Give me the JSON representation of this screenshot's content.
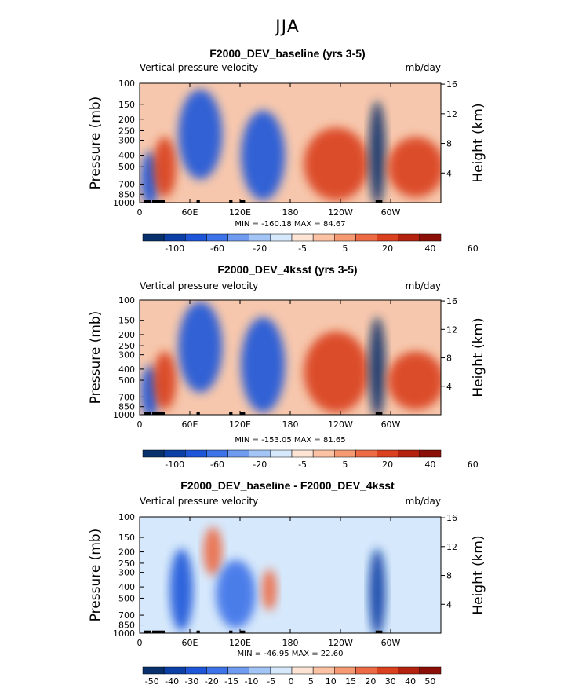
{
  "figure_title": "JJA",
  "colors": {
    "levels_main": [
      "#08306b",
      "#0b3fa6",
      "#1e56d9",
      "#3d72e8",
      "#6f9cf0",
      "#a3c5f6",
      "#d6e8fb",
      "#fde4d4",
      "#fbc3a4",
      "#f59a72",
      "#ec6b45",
      "#d9411f",
      "#b2220f",
      "#8b0f06"
    ],
    "levels_diff": [
      "#08306b",
      "#0b3fa6",
      "#1e56d9",
      "#3d72e8",
      "#6f9cf0",
      "#a3c5f6",
      "#d6e8fb",
      "#fde4d4",
      "#fbc3a4",
      "#f59a72",
      "#ec6b45",
      "#d9411f",
      "#b2220f",
      "#8b0f06"
    ],
    "background_field": "#f6c7ad",
    "topography": "#000000"
  },
  "chart_data": [
    {
      "type": "heatmap",
      "title": "F2000_DEV_baseline (yrs 3-5)",
      "subtitle_left": "Vertical pressure velocity",
      "subtitle_right": "mb/day",
      "ylabel": "Pressure (mb)",
      "ylabel_right": "Height (km)",
      "y_ticks": [
        "100",
        "150",
        "200",
        "250",
        "300",
        "400",
        "500",
        "700",
        "850",
        "1000"
      ],
      "y_tick_values": [
        100,
        150,
        200,
        250,
        300,
        400,
        500,
        700,
        850,
        1000
      ],
      "y_right_ticks": [
        "16",
        "12",
        "8",
        "4"
      ],
      "y_right_tick_values": [
        16,
        12,
        8,
        4
      ],
      "x_ticks": [
        "0",
        "60E",
        "120E",
        "180",
        "120W",
        "60W"
      ],
      "x_tick_values": [
        0,
        60,
        120,
        180,
        240,
        300
      ],
      "xlim": [
        0,
        360
      ],
      "ylim": [
        1000,
        100
      ],
      "stats_text": "MIN = -160.18   MAX =  84.67",
      "min": -160.18,
      "max": 84.67,
      "colorbar_labels": [
        "-100",
        "-60",
        "-20",
        "-5",
        "5",
        "20",
        "40",
        "60"
      ],
      "colorbar_levels": [
        -120,
        -100,
        -80,
        -60,
        -40,
        -20,
        -10,
        -5,
        0,
        5,
        10,
        20,
        30,
        40,
        50,
        60,
        70
      ],
      "features": [
        {
          "lon_range": [
            5,
            20
          ],
          "p_top": 400,
          "p_bottom": 1000,
          "value": -60
        },
        {
          "lon_range": [
            20,
            40
          ],
          "p_top": 300,
          "p_bottom": 850,
          "value": 30
        },
        {
          "lon_range": [
            50,
            95
          ],
          "p_top": 120,
          "p_bottom": 600,
          "value": -60
        },
        {
          "lon_range": [
            125,
            170
          ],
          "p_top": 180,
          "p_bottom": 900,
          "value": -60
        },
        {
          "lon_range": [
            200,
            270
          ],
          "p_top": 250,
          "p_bottom": 900,
          "value": 30
        },
        {
          "lon_range": [
            278,
            290
          ],
          "p_top": 150,
          "p_bottom": 1000,
          "value": -100
        },
        {
          "lon_range": [
            300,
            360
          ],
          "p_top": 300,
          "p_bottom": 850,
          "value": 30
        }
      ]
    },
    {
      "type": "heatmap",
      "title": "F2000_DEV_4ksst (yrs 3-5)",
      "subtitle_left": "Vertical pressure velocity",
      "subtitle_right": "mb/day",
      "ylabel": "Pressure (mb)",
      "ylabel_right": "Height (km)",
      "y_ticks": [
        "100",
        "150",
        "200",
        "250",
        "300",
        "400",
        "500",
        "700",
        "850",
        "1000"
      ],
      "y_tick_values": [
        100,
        150,
        200,
        250,
        300,
        400,
        500,
        700,
        850,
        1000
      ],
      "y_right_ticks": [
        "16",
        "12",
        "8",
        "4"
      ],
      "y_right_tick_values": [
        16,
        12,
        8,
        4
      ],
      "x_ticks": [
        "0",
        "60E",
        "120E",
        "180",
        "120W",
        "60W"
      ],
      "x_tick_values": [
        0,
        60,
        120,
        180,
        240,
        300
      ],
      "xlim": [
        0,
        360
      ],
      "ylim": [
        1000,
        100
      ],
      "stats_text": "MIN = -153.05   MAX =  81.65",
      "min": -153.05,
      "max": 81.65,
      "colorbar_labels": [
        "-100",
        "-60",
        "-20",
        "-5",
        "5",
        "20",
        "40",
        "60"
      ],
      "colorbar_levels": [
        -120,
        -100,
        -80,
        -60,
        -40,
        -20,
        -10,
        -5,
        0,
        5,
        10,
        20,
        30,
        40,
        50,
        60,
        70
      ],
      "features": [
        {
          "lon_range": [
            5,
            20
          ],
          "p_top": 400,
          "p_bottom": 1000,
          "value": -60
        },
        {
          "lon_range": [
            20,
            40
          ],
          "p_top": 300,
          "p_bottom": 850,
          "value": 30
        },
        {
          "lon_range": [
            50,
            95
          ],
          "p_top": 110,
          "p_bottom": 600,
          "value": -60
        },
        {
          "lon_range": [
            125,
            170
          ],
          "p_top": 150,
          "p_bottom": 900,
          "value": -60
        },
        {
          "lon_range": [
            200,
            270
          ],
          "p_top": 200,
          "p_bottom": 900,
          "value": 30
        },
        {
          "lon_range": [
            278,
            290
          ],
          "p_top": 150,
          "p_bottom": 1000,
          "value": -100
        },
        {
          "lon_range": [
            300,
            360
          ],
          "p_top": 300,
          "p_bottom": 850,
          "value": 30
        }
      ]
    },
    {
      "type": "heatmap",
      "title": "F2000_DEV_baseline - F2000_DEV_4ksst",
      "subtitle_left": "Vertical pressure velocity",
      "subtitle_right": "mb/day",
      "ylabel": "Pressure (mb)",
      "ylabel_right": "Height (km)",
      "y_ticks": [
        "100",
        "150",
        "200",
        "250",
        "300",
        "400",
        "500",
        "700",
        "850",
        "1000"
      ],
      "y_tick_values": [
        100,
        150,
        200,
        250,
        300,
        400,
        500,
        700,
        850,
        1000
      ],
      "y_right_ticks": [
        "16",
        "12",
        "8",
        "4"
      ],
      "y_right_tick_values": [
        16,
        12,
        8,
        4
      ],
      "x_ticks": [
        "0",
        "60E",
        "120E",
        "180",
        "120W",
        "60W"
      ],
      "x_tick_values": [
        0,
        60,
        120,
        180,
        240,
        300
      ],
      "xlim": [
        0,
        360
      ],
      "ylim": [
        1000,
        100
      ],
      "stats_text": "MIN = -46.95   MAX =  22.60",
      "min": -46.95,
      "max": 22.6,
      "colorbar_labels": [
        "-50",
        "-40",
        "-30",
        "-20",
        "-15",
        "-10",
        "-5",
        "0",
        "5",
        "10",
        "15",
        "20",
        "30",
        "40",
        "50"
      ],
      "colorbar_levels": [
        -55,
        -50,
        -40,
        -30,
        -20,
        -15,
        -10,
        -5,
        0,
        5,
        10,
        15,
        20,
        30,
        40,
        50,
        55
      ],
      "features": [
        {
          "lon_range": [
            40,
            60
          ],
          "p_top": 200,
          "p_bottom": 900,
          "value": -25
        },
        {
          "lon_range": [
            80,
            95
          ],
          "p_top": 130,
          "p_bottom": 300,
          "value": 15
        },
        {
          "lon_range": [
            95,
            135
          ],
          "p_top": 250,
          "p_bottom": 850,
          "value": -20
        },
        {
          "lon_range": [
            150,
            160
          ],
          "p_top": 300,
          "p_bottom": 600,
          "value": 15
        },
        {
          "lon_range": [
            278,
            290
          ],
          "p_top": 200,
          "p_bottom": 1000,
          "value": -40
        }
      ]
    }
  ]
}
